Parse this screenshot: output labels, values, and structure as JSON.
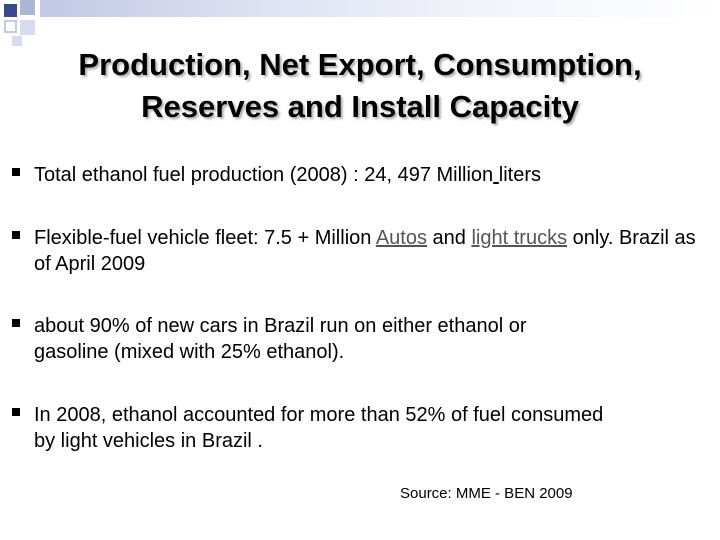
{
  "slide": {
    "title_line1": "Production, Net Export, Consumption,",
    "title_line2": "Reserves and Install Capacity",
    "bullets": [
      {
        "pre": "Total ethanol fuel production (2008) : 24, 497 Million",
        "underlined_space": " ",
        "post": "liters"
      },
      {
        "pre": "Flexible-fuel vehicle fleet: 7.5 + Million ",
        "link1": "Autos",
        "mid": " and ",
        "link2": "light trucks",
        "post": " only. Brazil as of April 2009"
      },
      {
        "line1": "about 90% of new cars in Brazil run on either ethanol or",
        "line2": "gasoline (mixed with 25% ethanol)."
      },
      {
        "line1": "In 2008, ethanol accounted for more than 52% of fuel consumed",
        "line2": "by light vehicles in Brazil ."
      }
    ],
    "source": "Source: MME - BEN 2009"
  },
  "colors": {
    "accent_dark": "#3a4a8c",
    "accent_mid": "#aeb6d6",
    "link_text": "#555555"
  }
}
